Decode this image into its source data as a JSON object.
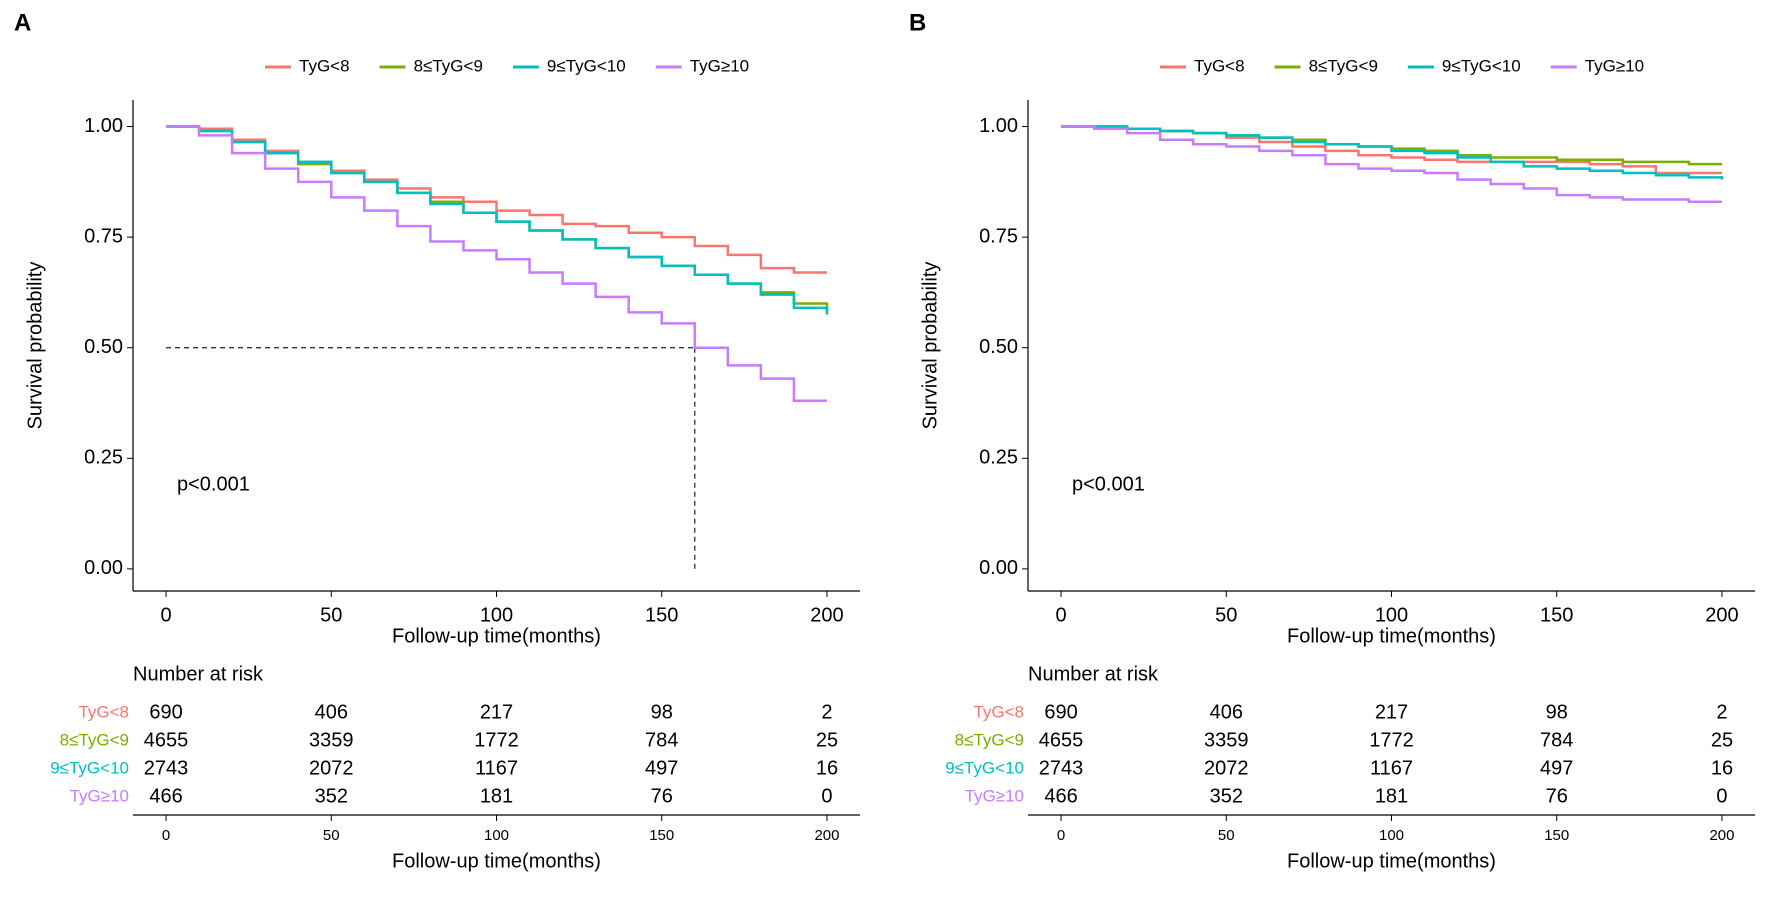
{
  "chart_data": [
    {
      "type": "step",
      "panel_label": "A",
      "xlabel": "Follow-up time(months)",
      "ylabel": "Survival probability",
      "annotation": "p<0.001",
      "xlim": [
        -10,
        210
      ],
      "xticks": [
        0,
        50,
        100,
        150,
        200
      ],
      "ylim": [
        -0.05,
        1.06
      ],
      "yticks": [
        {
          "value": 0,
          "label": "0.00"
        },
        {
          "value": 0.25,
          "label": "0.25"
        },
        {
          "value": 0.5,
          "label": "0.50"
        },
        {
          "value": 0.75,
          "label": "0.75"
        },
        {
          "value": 1,
          "label": "1.00"
        }
      ],
      "reference": {
        "x": 160,
        "y": 0.5
      },
      "x": [
        0,
        10,
        20,
        30,
        40,
        50,
        60,
        70,
        80,
        90,
        100,
        110,
        120,
        130,
        140,
        150,
        160,
        170,
        180,
        190,
        200
      ],
      "series": [
        {
          "name": "TyG<8",
          "color": "#F8766D",
          "values": [
            1,
            0.995,
            0.97,
            0.945,
            0.92,
            0.9,
            0.88,
            0.86,
            0.84,
            0.83,
            0.81,
            0.8,
            0.78,
            0.775,
            0.76,
            0.75,
            0.73,
            0.71,
            0.68,
            0.67,
            0.67
          ]
        },
        {
          "name": "8≤TyG<9",
          "color": "#7CAE00",
          "values": [
            1,
            0.99,
            0.965,
            0.94,
            0.915,
            0.895,
            0.875,
            0.85,
            0.83,
            0.805,
            0.785,
            0.765,
            0.745,
            0.725,
            0.705,
            0.685,
            0.665,
            0.645,
            0.625,
            0.6,
            0.58
          ]
        },
        {
          "name": "9≤TyG<10",
          "color": "#00BFC4",
          "values": [
            1,
            0.99,
            0.965,
            0.94,
            0.92,
            0.895,
            0.875,
            0.85,
            0.825,
            0.805,
            0.785,
            0.765,
            0.745,
            0.725,
            0.705,
            0.685,
            0.665,
            0.645,
            0.62,
            0.59,
            0.575
          ]
        },
        {
          "name": "TyG≥10",
          "color": "#C77CFF",
          "values": [
            1,
            0.98,
            0.94,
            0.905,
            0.875,
            0.84,
            0.81,
            0.775,
            0.74,
            0.72,
            0.7,
            0.67,
            0.645,
            0.615,
            0.58,
            0.555,
            0.5,
            0.46,
            0.43,
            0.38,
            0.38
          ]
        }
      ],
      "risk_table": {
        "title": "Number at risk",
        "xlabel": "Follow-up time(months)",
        "x": [
          0,
          50,
          100,
          150,
          200
        ],
        "rows": [
          [
            690,
            406,
            217,
            98,
            2
          ],
          [
            4655,
            3359,
            1772,
            784,
            25
          ],
          [
            2743,
            2072,
            1167,
            497,
            16
          ],
          [
            466,
            352,
            181,
            76,
            0
          ]
        ]
      }
    },
    {
      "type": "step",
      "panel_label": "B",
      "xlabel": "Follow-up time(months)",
      "ylabel": "Survival probability",
      "annotation": "p<0.001",
      "xlim": [
        -10,
        210
      ],
      "xticks": [
        0,
        50,
        100,
        150,
        200
      ],
      "ylim": [
        -0.05,
        1.06
      ],
      "yticks": [
        {
          "value": 0,
          "label": "0.00"
        },
        {
          "value": 0.25,
          "label": "0.25"
        },
        {
          "value": 0.5,
          "label": "0.50"
        },
        {
          "value": 0.75,
          "label": "0.75"
        },
        {
          "value": 1,
          "label": "1.00"
        }
      ],
      "x": [
        0,
        10,
        20,
        30,
        40,
        50,
        60,
        70,
        80,
        90,
        100,
        110,
        120,
        130,
        140,
        150,
        160,
        170,
        180,
        190,
        200
      ],
      "series": [
        {
          "name": "TyG<8",
          "color": "#F8766D",
          "values": [
            1,
            1,
            0.995,
            0.99,
            0.985,
            0.975,
            0.965,
            0.955,
            0.945,
            0.935,
            0.93,
            0.925,
            0.92,
            0.92,
            0.92,
            0.92,
            0.915,
            0.91,
            0.895,
            0.895,
            0.895
          ]
        },
        {
          "name": "8≤TyG<9",
          "color": "#7CAE00",
          "values": [
            1,
            1,
            0.995,
            0.99,
            0.985,
            0.98,
            0.975,
            0.97,
            0.96,
            0.955,
            0.95,
            0.945,
            0.935,
            0.93,
            0.93,
            0.925,
            0.925,
            0.92,
            0.92,
            0.915,
            0.915
          ]
        },
        {
          "name": "9≤TyG<10",
          "color": "#00BFC4",
          "values": [
            1,
            1,
            0.995,
            0.99,
            0.985,
            0.98,
            0.975,
            0.965,
            0.96,
            0.955,
            0.945,
            0.94,
            0.93,
            0.92,
            0.91,
            0.905,
            0.9,
            0.895,
            0.89,
            0.885,
            0.88
          ]
        },
        {
          "name": "TyG≥10",
          "color": "#C77CFF",
          "values": [
            1,
            0.995,
            0.985,
            0.97,
            0.96,
            0.955,
            0.945,
            0.935,
            0.915,
            0.905,
            0.9,
            0.895,
            0.88,
            0.87,
            0.86,
            0.845,
            0.84,
            0.835,
            0.835,
            0.83,
            0.83
          ]
        }
      ],
      "risk_table": {
        "title": "Number at risk",
        "xlabel": "Follow-up time(months)",
        "x": [
          0,
          50,
          100,
          150,
          200
        ],
        "rows": [
          [
            690,
            406,
            217,
            98,
            2
          ],
          [
            4655,
            3359,
            1772,
            784,
            25
          ],
          [
            2743,
            2072,
            1167,
            497,
            16
          ],
          [
            466,
            352,
            181,
            76,
            0
          ]
        ]
      }
    }
  ]
}
